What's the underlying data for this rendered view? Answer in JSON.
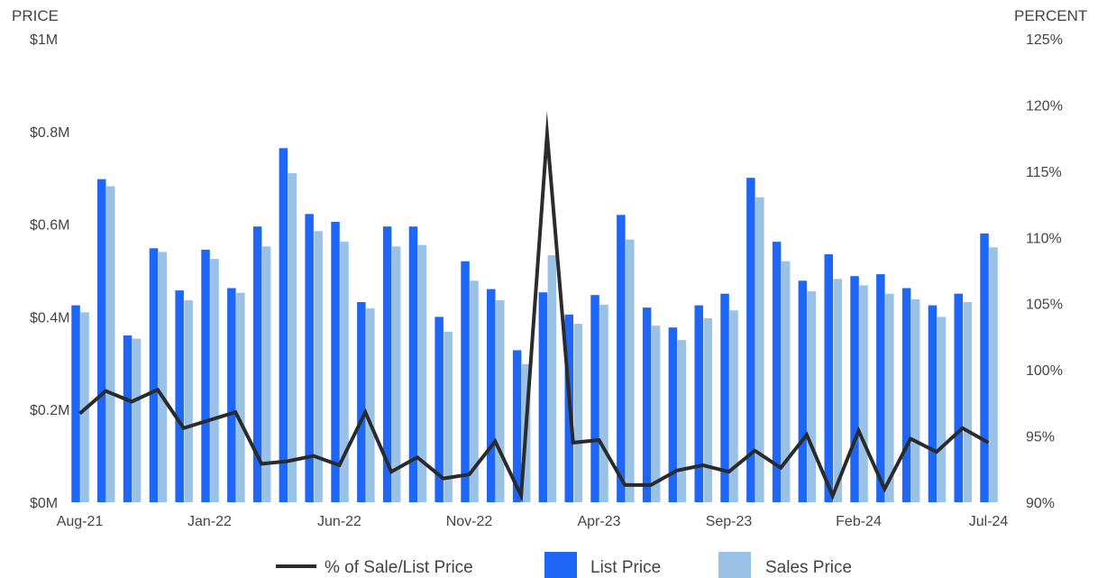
{
  "chart_data": {
    "type": "bar",
    "left_axis_title": "PRICE",
    "right_axis_title": "PERCENT",
    "y_left_range": [
      0,
      1000000
    ],
    "y_left_ticks": [
      "$0M",
      "$0.2M",
      "$0.4M",
      "$0.6M",
      "$0.8M",
      "$1M"
    ],
    "y_right_range": [
      90,
      125
    ],
    "y_right_ticks": [
      "90%",
      "95%",
      "100%",
      "105%",
      "110%",
      "115%",
      "120%",
      "125%"
    ],
    "x_tick_labels": [
      {
        "index": 0,
        "label": "Aug-21"
      },
      {
        "index": 5,
        "label": "Jan-22"
      },
      {
        "index": 10,
        "label": "Jun-22"
      },
      {
        "index": 15,
        "label": "Nov-22"
      },
      {
        "index": 20,
        "label": "Apr-23"
      },
      {
        "index": 25,
        "label": "Sep-23"
      },
      {
        "index": 30,
        "label": "Feb-24"
      },
      {
        "index": 35,
        "label": "Jul-24"
      }
    ],
    "categories": [
      "Aug-21",
      "Sep-21",
      "Oct-21",
      "Nov-21",
      "Dec-21",
      "Jan-22",
      "Feb-22",
      "Mar-22",
      "Apr-22",
      "May-22",
      "Jun-22",
      "Jul-22",
      "Aug-22",
      "Sep-22",
      "Oct-22",
      "Nov-22",
      "Dec-22",
      "Jan-23",
      "Feb-23",
      "Mar-23",
      "Apr-23",
      "May-23",
      "Jun-23",
      "Jul-23",
      "Aug-23",
      "Sep-23",
      "Oct-23",
      "Nov-23",
      "Dec-23",
      "Jan-24",
      "Feb-24",
      "Mar-24",
      "Apr-24",
      "May-24",
      "Jun-24",
      "Jul-24"
    ],
    "series": [
      {
        "name": "List Price",
        "kind": "bar",
        "axis": "left",
        "color": "#1e66f5",
        "values": [
          425000,
          697000,
          360000,
          548000,
          457000,
          545000,
          462000,
          595000,
          764000,
          622000,
          605000,
          432000,
          595000,
          595000,
          400000,
          520000,
          460000,
          328000,
          453000,
          405000,
          447000,
          620000,
          420000,
          377000,
          425000,
          450000,
          700000,
          562000,
          478000,
          535000,
          488000,
          492000,
          462000,
          425000,
          450000,
          580000
        ]
      },
      {
        "name": "Sales Price",
        "kind": "bar",
        "axis": "left",
        "color": "#9ac2e6",
        "values": [
          410000,
          682000,
          353000,
          540000,
          436000,
          525000,
          452000,
          552000,
          710000,
          585000,
          562000,
          418000,
          552000,
          555000,
          368000,
          478000,
          436000,
          298000,
          533000,
          385000,
          426000,
          567000,
          381000,
          350000,
          397000,
          414000,
          658000,
          520000,
          455000,
          482000,
          468000,
          450000,
          438000,
          400000,
          432000,
          550000
        ]
      },
      {
        "name": "% of Sale/List Price",
        "kind": "line",
        "axis": "right",
        "color": "#2b2b2b",
        "values": [
          96.7,
          98.4,
          97.6,
          98.5,
          95.6,
          96.2,
          96.8,
          92.9,
          93.1,
          93.5,
          92.8,
          96.8,
          92.3,
          93.4,
          91.8,
          92.1,
          94.6,
          90.5,
          117.8,
          94.5,
          94.7,
          91.3,
          91.3,
          92.4,
          92.8,
          92.3,
          93.9,
          92.6,
          95.1,
          90.5,
          95.4,
          91.0,
          94.8,
          93.8,
          95.6,
          94.5
        ]
      }
    ],
    "legend": {
      "position": "bottom",
      "items": [
        {
          "label": "% of Sale/List Price",
          "symbol": "line",
          "color": "#2b2b2b"
        },
        {
          "label": "List Price",
          "symbol": "box",
          "color": "#1e66f5"
        },
        {
          "label": "Sales Price",
          "symbol": "box",
          "color": "#9ac2e6"
        }
      ]
    },
    "grid": false
  }
}
